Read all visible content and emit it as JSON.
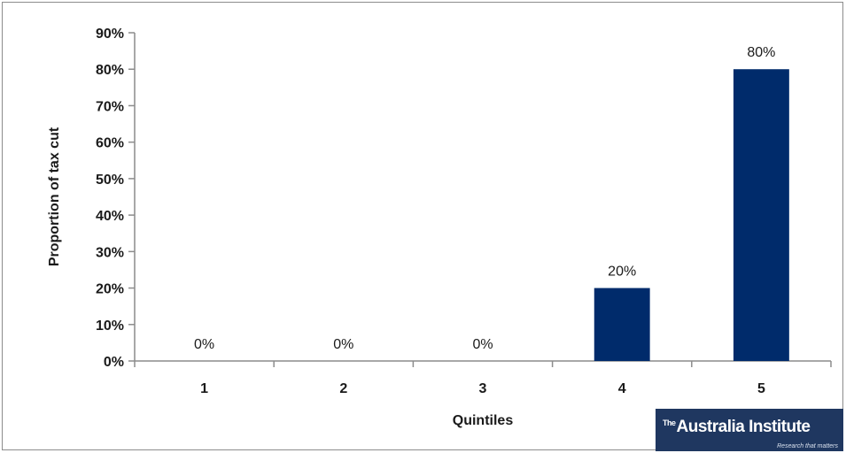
{
  "chart_data": {
    "type": "bar",
    "title": "",
    "xlabel": "Quintiles",
    "ylabel": "Proportion of tax cut",
    "categories": [
      "1",
      "2",
      "3",
      "4",
      "5"
    ],
    "values": [
      0,
      0,
      0,
      20,
      80
    ],
    "data_labels": [
      "0%",
      "0%",
      "0%",
      "20%",
      "80%"
    ],
    "ylim": [
      0,
      90
    ],
    "yticks": [
      0,
      10,
      20,
      30,
      40,
      50,
      60,
      70,
      80,
      90
    ],
    "ytick_labels": [
      "0%",
      "10%",
      "20%",
      "30%",
      "40%",
      "50%",
      "60%",
      "70%",
      "80%",
      "90%"
    ],
    "bar_color": "#002b6b",
    "grid": false,
    "legend": "none"
  },
  "logo": {
    "prefix": "The",
    "name": "Australia Institute",
    "tagline": "Research that matters"
  }
}
